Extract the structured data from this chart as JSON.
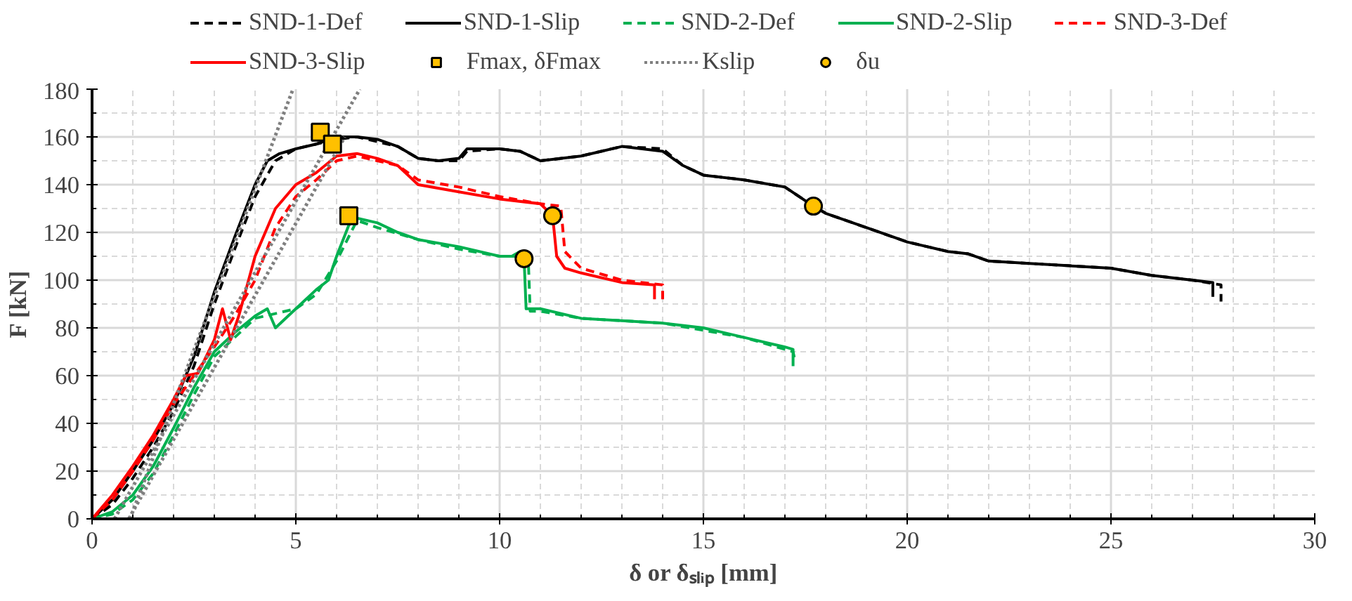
{
  "chart_data": {
    "type": "line",
    "xlabel": "δ or δₛₗᵢₚ [mm]",
    "ylabel": "F [kN]",
    "xlim": [
      0,
      30
    ],
    "ylim": [
      0,
      180
    ],
    "xticks": [
      0,
      5,
      10,
      15,
      20,
      25,
      30
    ],
    "yticks": [
      0,
      20,
      40,
      60,
      80,
      100,
      120,
      140,
      160,
      180
    ],
    "grid": true,
    "legend": "top",
    "series": [
      {
        "name": "SND-1-Def",
        "color": "#000000",
        "line_style": "dashed",
        "x": [
          0,
          0.5,
          1,
          1.5,
          2,
          2.5,
          3,
          3.5,
          4,
          4.5,
          5,
          5.5,
          6,
          6.5,
          7,
          7.5,
          8,
          8.5,
          9,
          9.2,
          10,
          10.5,
          11,
          12,
          13,
          14,
          14.5,
          15,
          16,
          17,
          17.7,
          18,
          19,
          20,
          21,
          21.5,
          22,
          23,
          24,
          25,
          26,
          27,
          27.7,
          27.7
        ],
        "values": [
          0,
          6,
          17,
          30,
          45,
          64,
          90,
          113,
          135,
          150,
          155,
          157,
          159,
          160,
          158,
          156,
          151,
          150,
          150,
          154,
          155,
          154,
          150,
          152,
          156,
          155,
          148,
          144,
          142,
          139,
          131,
          128,
          122,
          116,
          112,
          111,
          108,
          107,
          106,
          105,
          102,
          100,
          98,
          91
        ]
      },
      {
        "name": "SND-1-Slip",
        "color": "#000000",
        "line_style": "solid",
        "x": [
          0,
          0.5,
          1,
          1.5,
          2,
          2.5,
          3,
          3.5,
          4,
          4.3,
          4.6,
          5,
          5.5,
          6,
          6.5,
          7,
          7.5,
          8,
          8.5,
          9,
          9.2,
          10,
          10.5,
          11,
          12,
          13,
          14,
          14.5,
          15,
          16,
          17,
          17.7,
          18,
          19,
          20,
          21,
          21.5,
          22,
          23,
          24,
          25,
          26,
          27,
          27.5,
          27.5
        ],
        "values": [
          0,
          8,
          20,
          33,
          48,
          68,
          95,
          118,
          140,
          150,
          153,
          155,
          157,
          160,
          160,
          159,
          156,
          151,
          150,
          151,
          155,
          155,
          154,
          150,
          152,
          156,
          154,
          148,
          144,
          142,
          139,
          131,
          128,
          122,
          116,
          112,
          111,
          108,
          107,
          106,
          105,
          102,
          100,
          99,
          93
        ]
      },
      {
        "name": "SND-2-Def",
        "color": "#00b050",
        "line_style": "dashed",
        "x": [
          0,
          0.5,
          1,
          1.5,
          2,
          2.5,
          3,
          3.5,
          4,
          4.5,
          5,
          5.5,
          6,
          6.5,
          7,
          8,
          9,
          10,
          10.7,
          10.75,
          11,
          12,
          14,
          16,
          17.2,
          17.25
        ],
        "values": [
          0,
          2,
          8,
          19,
          35,
          52,
          68,
          76,
          84,
          86,
          88,
          94,
          108,
          125,
          122,
          117,
          113,
          110,
          110,
          87,
          87,
          84,
          82,
          76,
          70,
          66
        ]
      },
      {
        "name": "SND-2-Slip",
        "color": "#00b050",
        "line_style": "solid",
        "x": [
          0,
          0.5,
          1,
          1.5,
          2,
          2.5,
          3,
          3.5,
          4,
          4.3,
          4.5,
          5,
          5.5,
          5.8,
          6,
          6.3,
          6.5,
          7,
          7.5,
          8,
          9,
          10,
          10.3,
          10.5,
          10.6,
          10.65,
          11,
          12,
          13,
          14,
          15,
          16,
          17,
          17.2,
          17.2
        ],
        "values": [
          0,
          3,
          10,
          22,
          38,
          55,
          70,
          78,
          85,
          88,
          80,
          88,
          96,
          100,
          110,
          123,
          126,
          124,
          120,
          117,
          114,
          110,
          110,
          112,
          109,
          88,
          88,
          84,
          83,
          82,
          80,
          76,
          72,
          71,
          64
        ]
      },
      {
        "name": "SND-3-Def",
        "color": "#ff0000",
        "line_style": "dashed",
        "x": [
          0,
          0.5,
          1,
          1.5,
          2,
          2.5,
          3,
          3.5,
          4,
          4.5,
          5,
          5.5,
          6,
          6.5,
          7,
          7.5,
          8,
          9,
          10,
          11,
          11.5,
          11.6,
          12,
          13,
          14,
          14
        ],
        "values": [
          0,
          8,
          20,
          33,
          48,
          60,
          72,
          85,
          100,
          122,
          135,
          142,
          150,
          152,
          150,
          148,
          142,
          139,
          135,
          132,
          131,
          112,
          105,
          100,
          98,
          92
        ]
      },
      {
        "name": "SND-3-Slip",
        "color": "#ff0000",
        "line_style": "solid",
        "x": [
          0,
          0.5,
          1,
          1.5,
          2,
          2.3,
          2.6,
          3,
          3.2,
          3.4,
          3.6,
          4,
          4.5,
          5,
          5.5,
          6,
          6.5,
          7,
          7.5,
          8,
          9,
          10,
          11,
          11.3,
          11.4,
          11.6,
          12,
          13,
          13.8,
          13.8
        ],
        "values": [
          0,
          10,
          22,
          35,
          50,
          60,
          61,
          75,
          88,
          75,
          85,
          110,
          130,
          140,
          145,
          152,
          153,
          151,
          148,
          140,
          137,
          134,
          132,
          127,
          110,
          105,
          103,
          99,
          98,
          92
        ]
      },
      {
        "name": "Fmax, δFmax",
        "type": "scatter",
        "marker": "square",
        "color": "#ffc000",
        "x": [
          5.6,
          5.9,
          6.3
        ],
        "values": [
          162,
          157,
          127
        ]
      },
      {
        "name": "Kslip",
        "color": "#808080",
        "line_style": "dotted",
        "x": [
          0.93,
          4.93,
          null,
          0.55,
          6.57,
          null,
          0.9,
          6.2
        ],
        "values": [
          0,
          180,
          null,
          0,
          180,
          null,
          0,
          160
        ]
      },
      {
        "name": "δu",
        "type": "scatter",
        "marker": "circle",
        "color": "#ffc000",
        "x": [
          10.6,
          11.3,
          17.7
        ],
        "values": [
          109,
          127,
          131
        ]
      }
    ]
  }
}
